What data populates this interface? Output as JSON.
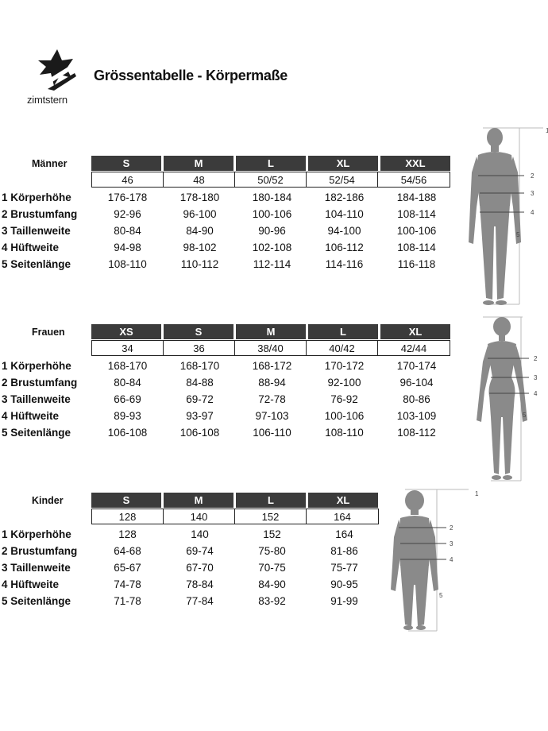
{
  "brand": "zimtstern",
  "title": "Grössentabelle - Körpermaße",
  "row_labels": [
    "1 Körperhöhe",
    "2 Brustumfang",
    "3 Taillenweite",
    "4 Hüftweite",
    "5 Seitenlänge"
  ],
  "figure_markers": [
    "1",
    "2",
    "3",
    "4",
    "5"
  ],
  "sections": {
    "men": {
      "label": "Männer",
      "sizes": [
        "S",
        "M",
        "L",
        "XL",
        "XXL"
      ],
      "eu": [
        "46",
        "48",
        "50/52",
        "52/54",
        "54/56"
      ],
      "rows": [
        [
          "176-178",
          "178-180",
          "180-184",
          "182-186",
          "184-188"
        ],
        [
          "92-96",
          "96-100",
          "100-106",
          "104-110",
          "108-114"
        ],
        [
          "80-84",
          "84-90",
          "90-96",
          "94-100",
          "100-106"
        ],
        [
          "94-98",
          "98-102",
          "102-108",
          "106-112",
          "108-114"
        ],
        [
          "108-110",
          "110-112",
          "112-114",
          "114-116",
          "116-118"
        ]
      ]
    },
    "women": {
      "label": "Frauen",
      "sizes": [
        "XS",
        "S",
        "M",
        "L",
        "XL"
      ],
      "eu": [
        "34",
        "36",
        "38/40",
        "40/42",
        "42/44"
      ],
      "rows": [
        [
          "168-170",
          "168-170",
          "168-172",
          "170-172",
          "170-174"
        ],
        [
          "80-84",
          "84-88",
          "88-94",
          "92-100",
          "96-104"
        ],
        [
          "66-69",
          "69-72",
          "72-78",
          "76-92",
          "80-86"
        ],
        [
          "89-93",
          "93-97",
          "97-103",
          "100-106",
          "103-109"
        ],
        [
          "106-108",
          "106-108",
          "106-110",
          "108-110",
          "108-112"
        ]
      ]
    },
    "kids": {
      "label": "Kinder",
      "sizes": [
        "S",
        "M",
        "L",
        "XL"
      ],
      "eu": [
        "128",
        "140",
        "152",
        "164"
      ],
      "rows": [
        [
          "128",
          "140",
          "152",
          "164"
        ],
        [
          "64-68",
          "69-74",
          "75-80",
          "81-86"
        ],
        [
          "65-67",
          "67-70",
          "70-75",
          "75-77"
        ],
        [
          "74-78",
          "78-84",
          "84-90",
          "90-95"
        ],
        [
          "71-78",
          "77-84",
          "83-92",
          "91-99"
        ]
      ]
    }
  }
}
